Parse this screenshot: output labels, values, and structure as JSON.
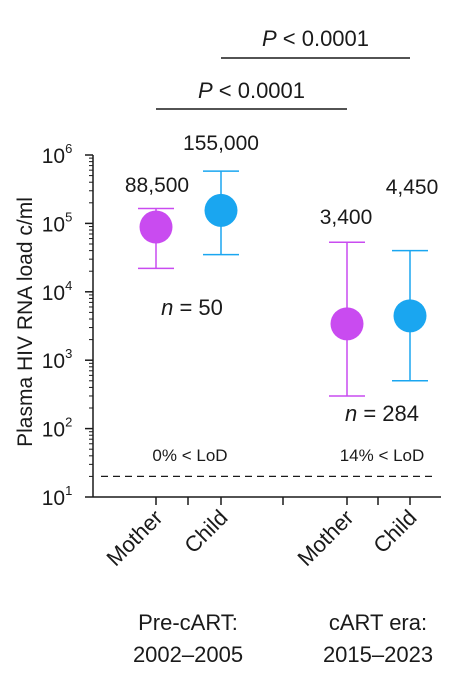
{
  "chart_data": {
    "type": "scatter",
    "ylabel": "Plasma HIV RNA load c/ml",
    "yscale": "log",
    "ylim": [
      10,
      1000000
    ],
    "yticks": [
      {
        "value": 10,
        "base": "10",
        "exp": "1"
      },
      {
        "value": 100,
        "base": "10",
        "exp": "2"
      },
      {
        "value": 1000,
        "base": "10",
        "exp": "3"
      },
      {
        "value": 10000,
        "base": "10",
        "exp": "4"
      },
      {
        "value": 100000,
        "base": "10",
        "exp": "5"
      },
      {
        "value": 1000000,
        "base": "10",
        "exp": "6"
      }
    ],
    "lod": 20,
    "groups": [
      {
        "label_line1": "Pre-cART:",
        "label_line2": "2002–2005",
        "n_text": "n = 50",
        "lod_text": "0% < LoD",
        "points": [
          {
            "category": "Mother",
            "median": 88500,
            "low": 22000,
            "high": 165000,
            "label": "88,500",
            "color": "#c94bf0"
          },
          {
            "category": "Child",
            "median": 155000,
            "low": 35000,
            "high": 580000,
            "label": "155,000",
            "color": "#1aa6f0"
          }
        ]
      },
      {
        "label_line1": "cART era:",
        "label_line2": "2015–2023",
        "n_text": "n = 284",
        "lod_text": "14% < LoD",
        "points": [
          {
            "category": "Mother",
            "median": 3400,
            "low": 300,
            "high": 53000,
            "label": "3,400",
            "color": "#c94bf0"
          },
          {
            "category": "Child",
            "median": 4450,
            "low": 500,
            "high": 40000,
            "label": "4,450",
            "color": "#1aa6f0"
          }
        ]
      }
    ],
    "comparisons": [
      {
        "text": "P < 0.0001",
        "from": "Pre-cART Mother",
        "to": "cART Mother"
      },
      {
        "text": "P < 0.0001",
        "from": "Pre-cART Child",
        "to": "cART Child"
      }
    ]
  }
}
